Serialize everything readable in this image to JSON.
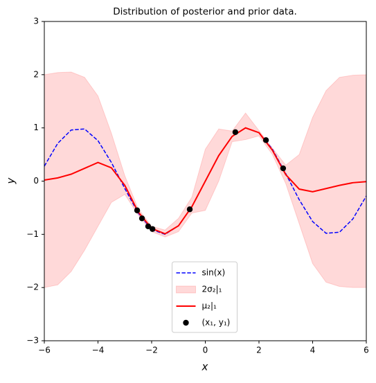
{
  "chart_data": {
    "type": "line",
    "title": "Distribution of posterior and prior data.",
    "xlabel": "x",
    "ylabel": "y",
    "xlim": [
      -6,
      6
    ],
    "ylim": [
      -3,
      3
    ],
    "xticks": [
      {
        "value": -6,
        "label": "−6"
      },
      {
        "value": -4,
        "label": "−4"
      },
      {
        "value": -2,
        "label": "−2"
      },
      0,
      2,
      4,
      6
    ],
    "yticks": [
      {
        "value": -3,
        "label": "−3"
      },
      {
        "value": -2,
        "label": "−2"
      },
      {
        "value": -1,
        "label": "−1"
      },
      0,
      1,
      2,
      3
    ],
    "x": [
      -6,
      -5.5,
      -5,
      -4.5,
      -4,
      -3.5,
      -3,
      -2.5,
      -2,
      -1.5,
      -1,
      -0.5,
      0,
      0.5,
      1,
      1.5,
      2,
      2.5,
      3,
      3.5,
      4,
      4.5,
      5,
      5.5,
      6
    ],
    "series": [
      {
        "name": "sin(x)",
        "color": "#0000ff",
        "style": "dashed",
        "values": [
          0.28,
          0.71,
          0.96,
          0.98,
          0.76,
          0.35,
          -0.14,
          -0.6,
          -0.91,
          -1.0,
          -0.84,
          -0.48,
          0.0,
          0.48,
          0.84,
          1.0,
          0.91,
          0.6,
          0.14,
          -0.35,
          -0.76,
          -0.98,
          -0.96,
          -0.71,
          -0.28
        ]
      },
      {
        "name": "μ₂|₁",
        "color": "#ff0000",
        "style": "solid",
        "values": [
          0.02,
          0.06,
          0.13,
          0.24,
          0.35,
          0.25,
          -0.08,
          -0.58,
          -0.89,
          -0.99,
          -0.84,
          -0.48,
          0.0,
          0.48,
          0.84,
          1.0,
          0.91,
          0.58,
          0.12,
          -0.15,
          -0.2,
          -0.14,
          -0.08,
          -0.03,
          -0.01
        ]
      }
    ],
    "band": {
      "name": "2σ₂|₁",
      "color": "#ff0000",
      "upper": [
        2.0,
        2.04,
        2.05,
        1.95,
        1.6,
        0.9,
        0.1,
        -0.52,
        -0.85,
        -0.92,
        -0.7,
        -0.3,
        0.6,
        0.98,
        0.94,
        1.28,
        0.95,
        0.62,
        0.3,
        0.5,
        1.2,
        1.7,
        1.95,
        1.99,
        2.0
      ],
      "lower": [
        -2.0,
        -1.95,
        -1.7,
        -1.3,
        -0.85,
        -0.4,
        -0.25,
        -0.64,
        -0.95,
        -1.05,
        -0.95,
        -0.6,
        -0.55,
        0.0,
        0.74,
        0.78,
        0.85,
        0.5,
        -0.05,
        -0.8,
        -1.55,
        -1.9,
        -1.98,
        -2.0,
        -2.0
      ]
    },
    "points": {
      "name": "(x₁, y₁)",
      "color": "#000000",
      "x": [
        -2.54,
        -2.36,
        -2.13,
        -1.97,
        -0.58,
        1.12,
        2.26,
        2.9
      ],
      "y": [
        -0.55,
        -0.7,
        -0.85,
        -0.9,
        -0.53,
        0.92,
        0.77,
        0.24
      ]
    },
    "legend": "lower center"
  }
}
